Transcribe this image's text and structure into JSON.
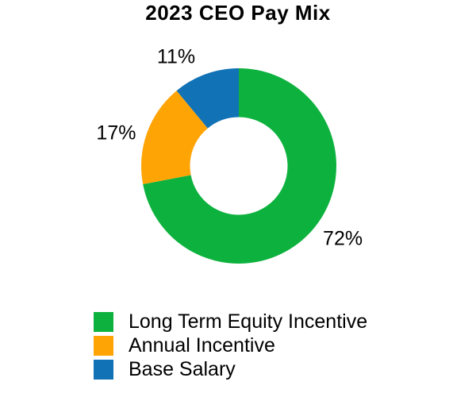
{
  "chart_data": {
    "type": "pie",
    "subtype": "donut",
    "title": "2023 CEO Pay Mix",
    "hole_ratio": 0.5,
    "rotation_deg": 0,
    "direction": "clockwise",
    "legend_position": "bottom-left",
    "background_color": "#FFFFFF",
    "text_color": "#000000",
    "slices": [
      {
        "label": "Long Term Equity Incentive",
        "value": 72,
        "pct_label": "72%",
        "color": "#0DB23E",
        "label_angle_deg": 125,
        "label_radius": 160
      },
      {
        "label": "Annual Incentive",
        "value": 17,
        "pct_label": "17%",
        "color": "#FFA405",
        "label_angle_deg": 285,
        "label_radius": 160
      },
      {
        "label": "Base Salary",
        "value": 11,
        "pct_label": "11%",
        "color": "#1272B6",
        "label_angle_deg": 330,
        "label_radius": 158
      }
    ]
  }
}
